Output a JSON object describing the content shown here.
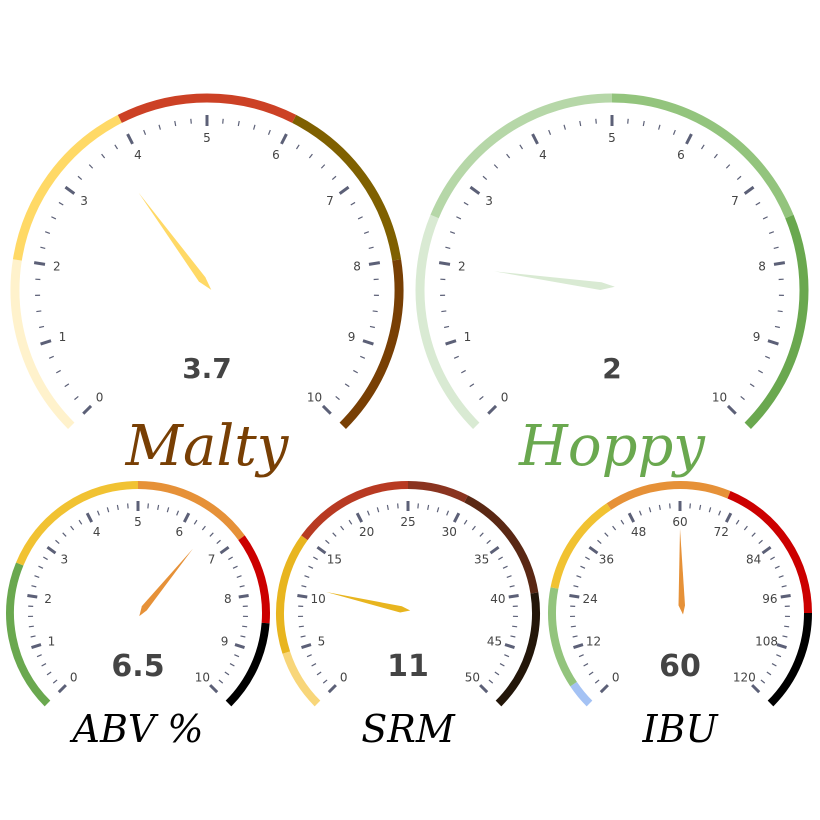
{
  "chart_data": [
    {
      "type": "gauge",
      "title": "Malty",
      "title_color": "#783F04",
      "min": 0,
      "max": 10,
      "major_step": 1,
      "minor_per_major": 5,
      "tick_labels": [
        "0",
        "1",
        "2",
        "3",
        "4",
        "5",
        "6",
        "7",
        "8",
        "9",
        "10"
      ],
      "value": 3.7,
      "value_label": "3.7",
      "needle_color": "#FFD966",
      "bands": [
        {
          "from": 0,
          "to": 2,
          "color": "#FFF2CC"
        },
        {
          "from": 2,
          "to": 4,
          "color": "#FFD966"
        },
        {
          "from": 4,
          "to": 6,
          "color": "#CC4125"
        },
        {
          "from": 6,
          "to": 8,
          "color": "#7F6000"
        },
        {
          "from": 8,
          "to": 10,
          "color": "#783F04"
        }
      ]
    },
    {
      "type": "gauge",
      "title": "Hoppy",
      "title_color": "#6AA84F",
      "min": 0,
      "max": 10,
      "major_step": 1,
      "minor_per_major": 5,
      "tick_labels": [
        "0",
        "1",
        "2",
        "3",
        "4",
        "5",
        "6",
        "7",
        "8",
        "9",
        "10"
      ],
      "value": 2,
      "value_label": "2",
      "needle_color": "#D9EAD3",
      "bands": [
        {
          "from": 0,
          "to": 2.5,
          "color": "#D9EAD3"
        },
        {
          "from": 2.5,
          "to": 5,
          "color": "#B6D7A8"
        },
        {
          "from": 5,
          "to": 7.5,
          "color": "#93C47D"
        },
        {
          "from": 7.5,
          "to": 10,
          "color": "#6AA84F"
        }
      ]
    },
    {
      "type": "gauge",
      "title": "ABV %",
      "title_color": "#000000",
      "min": 0,
      "max": 10,
      "major_step": 1,
      "minor_per_major": 5,
      "tick_labels": [
        "0",
        "1",
        "2",
        "3",
        "4",
        "5",
        "6",
        "7",
        "8",
        "9",
        "10"
      ],
      "value": 6.5,
      "value_label": "6.5",
      "needle_color": "#E69138",
      "bands": [
        {
          "from": 0,
          "to": 2.5,
          "color": "#6AA84F"
        },
        {
          "from": 2.5,
          "to": 5,
          "color": "#F1C232"
        },
        {
          "from": 5,
          "to": 7,
          "color": "#E69138"
        },
        {
          "from": 7,
          "to": 8.5,
          "color": "#CC0000"
        },
        {
          "from": 8.5,
          "to": 10,
          "color": "#000000"
        }
      ]
    },
    {
      "type": "gauge",
      "title": "SRM",
      "title_color": "#000000",
      "min": 0,
      "max": 50,
      "major_step": 5,
      "minor_per_major": 5,
      "tick_labels": [
        "0",
        "5",
        "10",
        "15",
        "20",
        "25",
        "30",
        "35",
        "40",
        "45",
        "50"
      ],
      "value": 11,
      "value_label": "11",
      "needle_color": "#E8B51F",
      "bands": [
        {
          "from": 0,
          "to": 5,
          "color": "#F8D67A"
        },
        {
          "from": 5,
          "to": 15,
          "color": "#E8B51F"
        },
        {
          "from": 15,
          "to": 25,
          "color": "#B83A22"
        },
        {
          "from": 25,
          "to": 30,
          "color": "#8A3420"
        },
        {
          "from": 30,
          "to": 40,
          "color": "#5A2814"
        },
        {
          "from": 40,
          "to": 50,
          "color": "#231609"
        }
      ]
    },
    {
      "type": "gauge",
      "title": "IBU",
      "title_color": "#000000",
      "min": 0,
      "max": 120,
      "major_step": 12,
      "minor_per_major": 5,
      "tick_labels": [
        "0",
        "12",
        "24",
        "36",
        "48",
        "60",
        "72",
        "84",
        "96",
        "108",
        "120"
      ],
      "value": 60,
      "value_label": "60",
      "needle_color": "#E69138",
      "bands": [
        {
          "from": 0,
          "to": 5,
          "color": "#A4C2F4"
        },
        {
          "from": 5,
          "to": 25,
          "color": "#93C47D"
        },
        {
          "from": 25,
          "to": 45,
          "color": "#F1C232"
        },
        {
          "from": 45,
          "to": 70,
          "color": "#E69138"
        },
        {
          "from": 70,
          "to": 100,
          "color": "#CC0000"
        },
        {
          "from": 100,
          "to": 120,
          "color": "#000000"
        }
      ]
    }
  ]
}
